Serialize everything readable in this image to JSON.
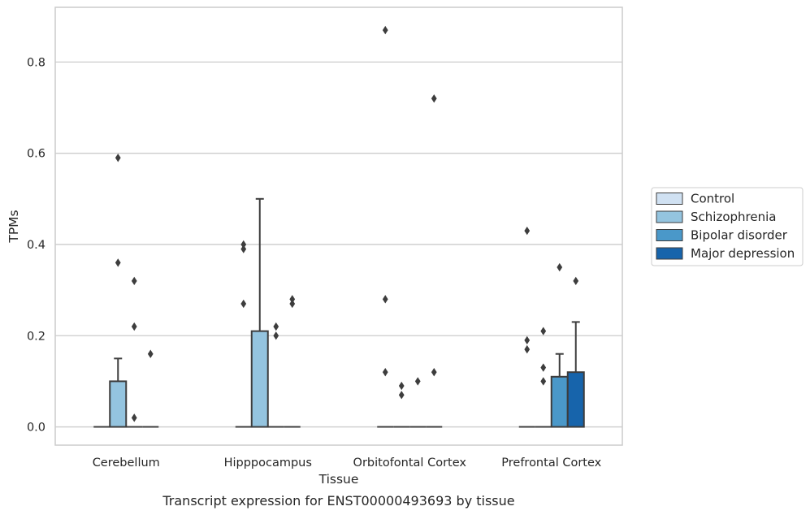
{
  "chart_data": {
    "type": "box",
    "caption": "Transcript expression for ENST00000493693 by tissue",
    "xlabel": "Tissue",
    "ylabel": "TPMs",
    "ylim": [
      -0.04,
      0.92
    ],
    "yticks": [
      0.0,
      0.2,
      0.4,
      0.6,
      0.8
    ],
    "ytick_labels": [
      "0.0",
      "0.2",
      "0.4",
      "0.6",
      "0.8"
    ],
    "grid": "horizontal",
    "legend_position": "right",
    "categories": [
      "Cerebellum",
      "Hipppocampus",
      "Orbitofontal Cortex",
      "Prefrontal Cortex"
    ],
    "series": [
      {
        "name": "Control",
        "color": "#d0e1f2",
        "boxes": [
          {
            "q1": 0,
            "median": 0,
            "q3": 0,
            "whisker_low": 0,
            "whisker_high": 0,
            "outliers": []
          },
          {
            "q1": 0,
            "median": 0,
            "q3": 0,
            "whisker_low": 0,
            "whisker_high": 0,
            "outliers": [
              0.27,
              0.39,
              0.4
            ]
          },
          {
            "q1": 0,
            "median": 0,
            "q3": 0,
            "whisker_low": 0,
            "whisker_high": 0,
            "outliers": [
              0.12,
              0.28,
              0.87
            ]
          },
          {
            "q1": 0,
            "median": 0,
            "q3": 0,
            "whisker_low": 0,
            "whisker_high": 0,
            "outliers": [
              0.17,
              0.19,
              0.43
            ]
          }
        ]
      },
      {
        "name": "Schizophrenia",
        "color": "#94c4df",
        "boxes": [
          {
            "q1": 0,
            "median": 0,
            "q3": 0.1,
            "whisker_low": 0,
            "whisker_high": 0.15,
            "outliers": [
              0.36,
              0.59
            ]
          },
          {
            "q1": 0,
            "median": 0,
            "q3": 0.21,
            "whisker_low": 0,
            "whisker_high": 0.5,
            "outliers": []
          },
          {
            "q1": 0,
            "median": 0,
            "q3": 0,
            "whisker_low": 0,
            "whisker_high": 0,
            "outliers": [
              0.07,
              0.09
            ]
          },
          {
            "q1": 0,
            "median": 0,
            "q3": 0,
            "whisker_low": 0,
            "whisker_high": 0,
            "outliers": [
              0.1,
              0.13,
              0.21
            ]
          }
        ]
      },
      {
        "name": "Bipolar disorder",
        "color": "#4a98c9",
        "boxes": [
          {
            "q1": 0,
            "median": 0,
            "q3": 0,
            "whisker_low": 0,
            "whisker_high": 0,
            "outliers": [
              0.02,
              0.22,
              0.32
            ]
          },
          {
            "q1": 0,
            "median": 0,
            "q3": 0,
            "whisker_low": 0,
            "whisker_high": 0,
            "outliers": [
              0.2,
              0.22
            ]
          },
          {
            "q1": 0,
            "median": 0,
            "q3": 0,
            "whisker_low": 0,
            "whisker_high": 0,
            "outliers": [
              0.1
            ]
          },
          {
            "q1": 0,
            "median": 0,
            "q3": 0.11,
            "whisker_low": 0,
            "whisker_high": 0.16,
            "outliers": [
              0.35
            ]
          }
        ]
      },
      {
        "name": "Major depression",
        "color": "#1764ab",
        "boxes": [
          {
            "q1": 0,
            "median": 0,
            "q3": 0,
            "whisker_low": 0,
            "whisker_high": 0,
            "outliers": [
              0.16
            ]
          },
          {
            "q1": 0,
            "median": 0,
            "q3": 0,
            "whisker_low": 0,
            "whisker_high": 0,
            "outliers": [
              0.27,
              0.28
            ]
          },
          {
            "q1": 0,
            "median": 0,
            "q3": 0,
            "whisker_low": 0,
            "whisker_high": 0,
            "outliers": [
              0.12,
              0.72
            ]
          },
          {
            "q1": 0,
            "median": 0,
            "q3": 0.12,
            "whisker_low": 0,
            "whisker_high": 0.23,
            "outliers": [
              0.32
            ]
          }
        ]
      }
    ]
  },
  "legend": {
    "items": [
      "Control",
      "Schizophrenia",
      "Bipolar disorder",
      "Major depression"
    ]
  }
}
